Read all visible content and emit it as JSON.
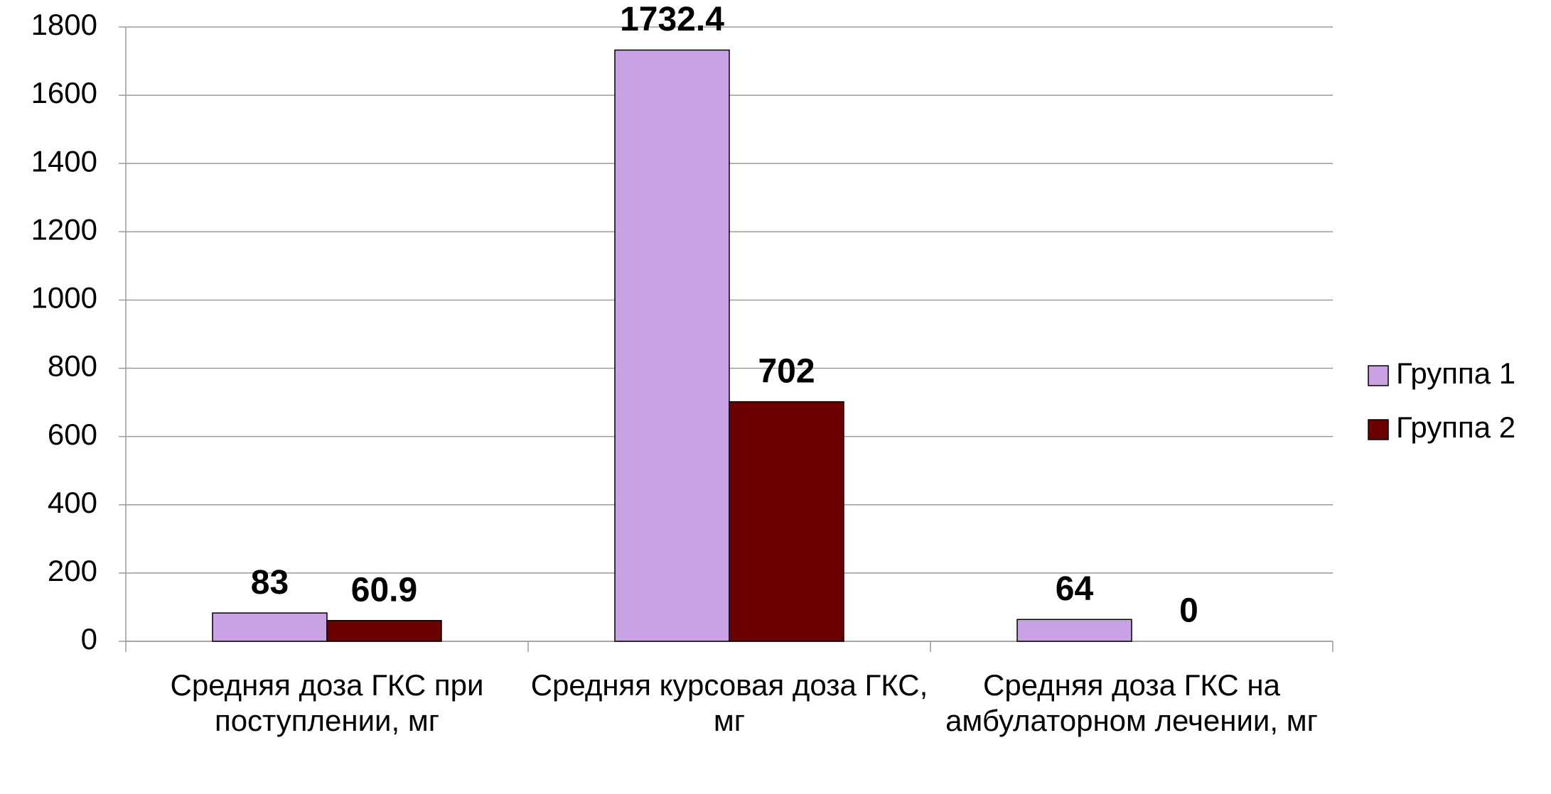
{
  "chart_data": {
    "type": "bar",
    "categories": [
      "Средняя доза ГКС при поступлении, мг",
      "Средняя курсовая доза ГКС, мг",
      "Средняя доза ГКС на амбулаторном лечении, мг"
    ],
    "series": [
      {
        "name": "Группа 1",
        "color": "#c8a2e2",
        "values": [
          83,
          1732.4,
          64
        ]
      },
      {
        "name": "Группа 2",
        "color": "#6b0000",
        "values": [
          60.9,
          702,
          0
        ]
      }
    ],
    "ylim": [
      0,
      1800
    ],
    "yticks": [
      0,
      200,
      400,
      600,
      800,
      1000,
      1200,
      1400,
      1600,
      1800
    ],
    "grid": true,
    "legend": "right"
  }
}
